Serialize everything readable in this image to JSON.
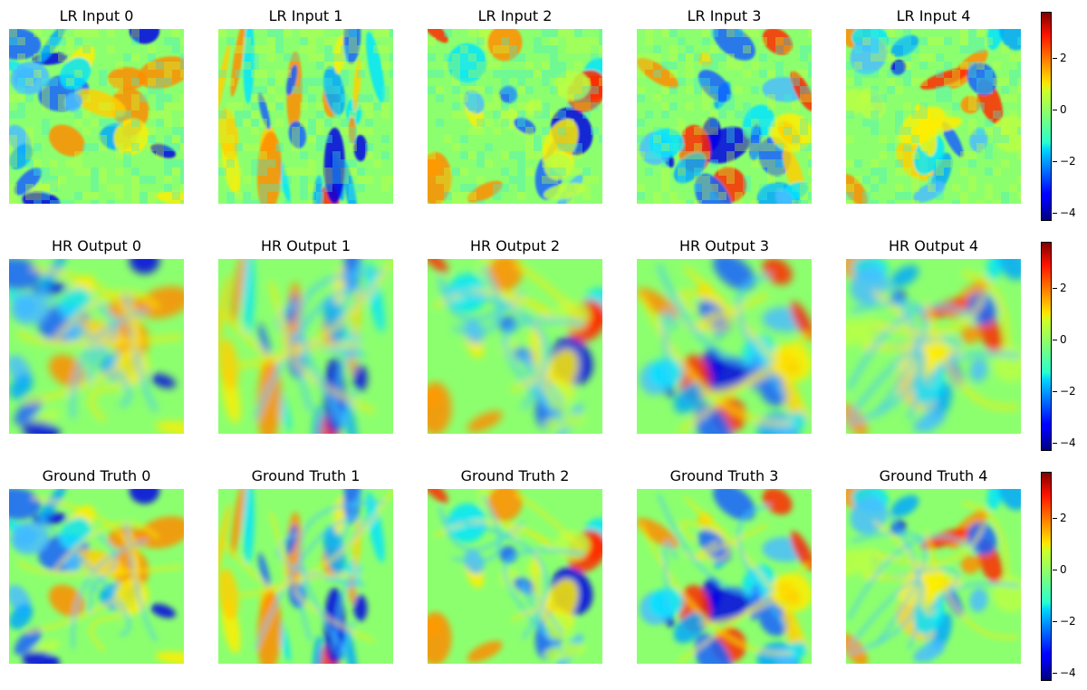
{
  "rows": [
    {
      "kind": "lr",
      "titles": [
        "LR Input 0",
        "LR Input 1",
        "LR Input 2",
        "LR Input 3",
        "LR Input 4"
      ]
    },
    {
      "kind": "hr",
      "titles": [
        "HR Output 0",
        "HR Output 1",
        "HR Output 2",
        "HR Output 3",
        "HR Output 4"
      ]
    },
    {
      "kind": "gt",
      "titles": [
        "Ground Truth 0",
        "Ground Truth 1",
        "Ground Truth 2",
        "Ground Truth 3",
        "Ground Truth 4"
      ]
    }
  ],
  "colorbar": {
    "colormap": "jet",
    "ticks": [
      "2",
      "0",
      "−2",
      "−4"
    ],
    "tick_values": [
      2,
      0,
      -2,
      -4
    ],
    "range": [
      -4.3,
      3.8
    ]
  }
}
